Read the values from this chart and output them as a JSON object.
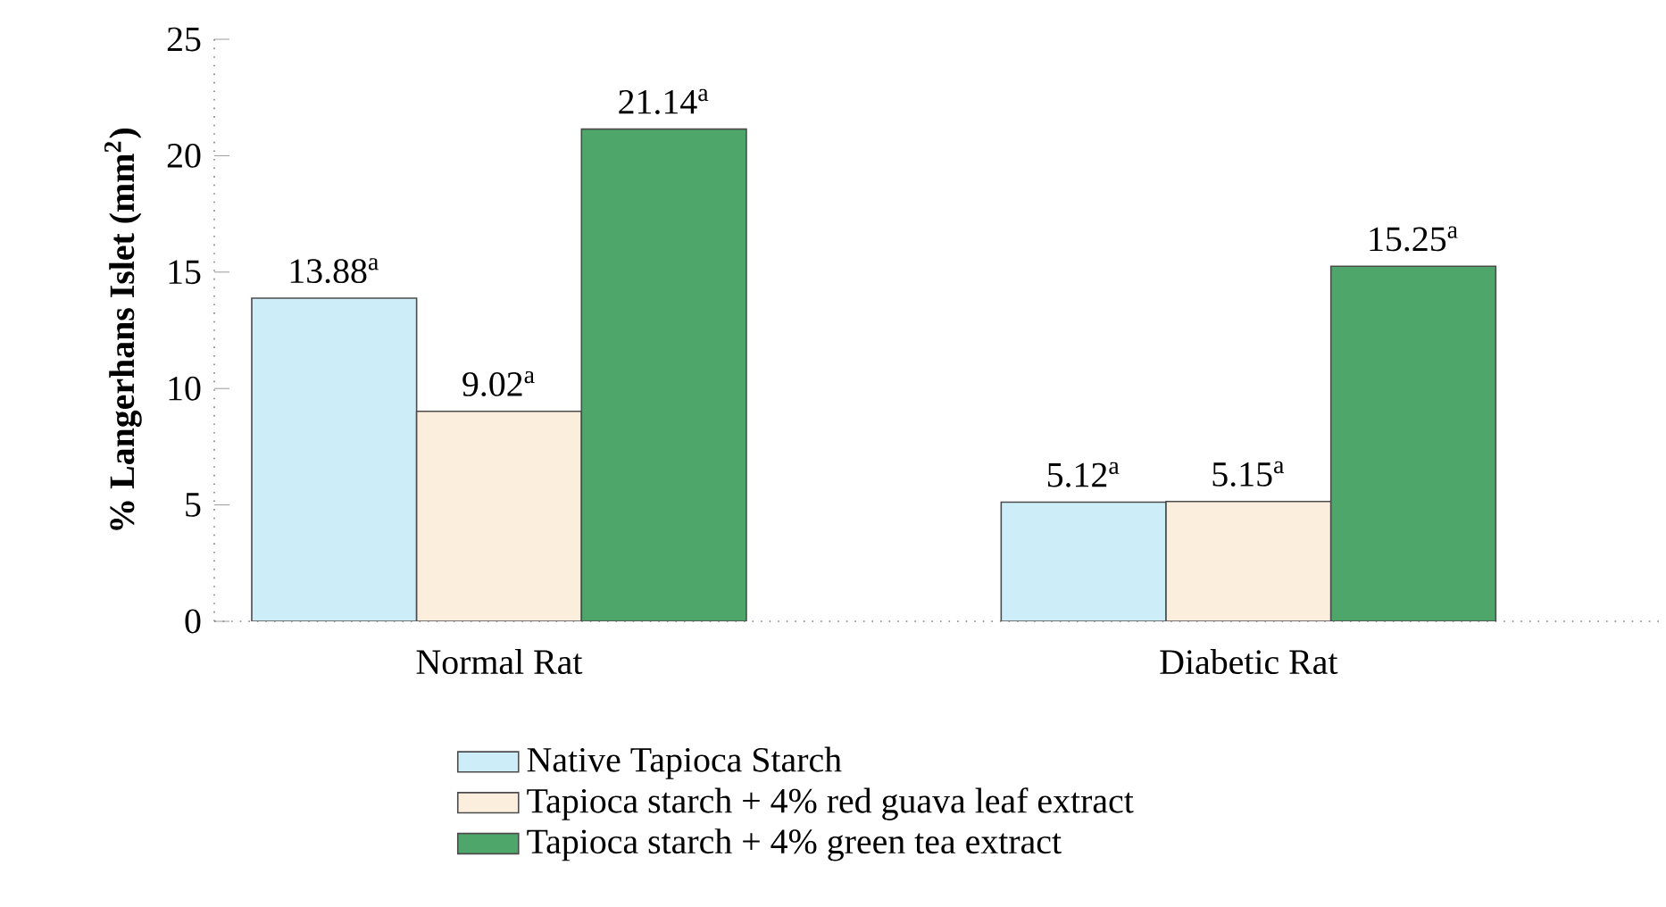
{
  "chart_data": {
    "type": "bar",
    "ylabel": "% Langerhans Islet (mm$^{2}$)",
    "categories": [
      "Normal Rat",
      "Diabetic Rat"
    ],
    "series": [
      {
        "name": "Native Tapioca Starch",
        "color": "#cdeef8",
        "values": [
          13.88,
          5.12
        ],
        "value_labels": [
          "13.88$^{a}$",
          "5.12$^{a}$"
        ]
      },
      {
        "name": "Tapioca starch + 4% red guava leaf extract",
        "color": "#fbeedd",
        "values": [
          9.02,
          5.15
        ],
        "value_labels": [
          "9.02$^{a}$",
          "5.15$^{a}$"
        ]
      },
      {
        "name": "Tapioca starch + 4% green tea extract",
        "color": "#4ea66a",
        "values": [
          21.14,
          15.25
        ],
        "value_labels": [
          "21.14$^{a}$",
          "15.25$^{a}$"
        ]
      }
    ],
    "ylim": [
      0,
      25
    ],
    "yticks": [
      0,
      5,
      10,
      15,
      20,
      25
    ],
    "grid": false,
    "legend": "bottom"
  }
}
